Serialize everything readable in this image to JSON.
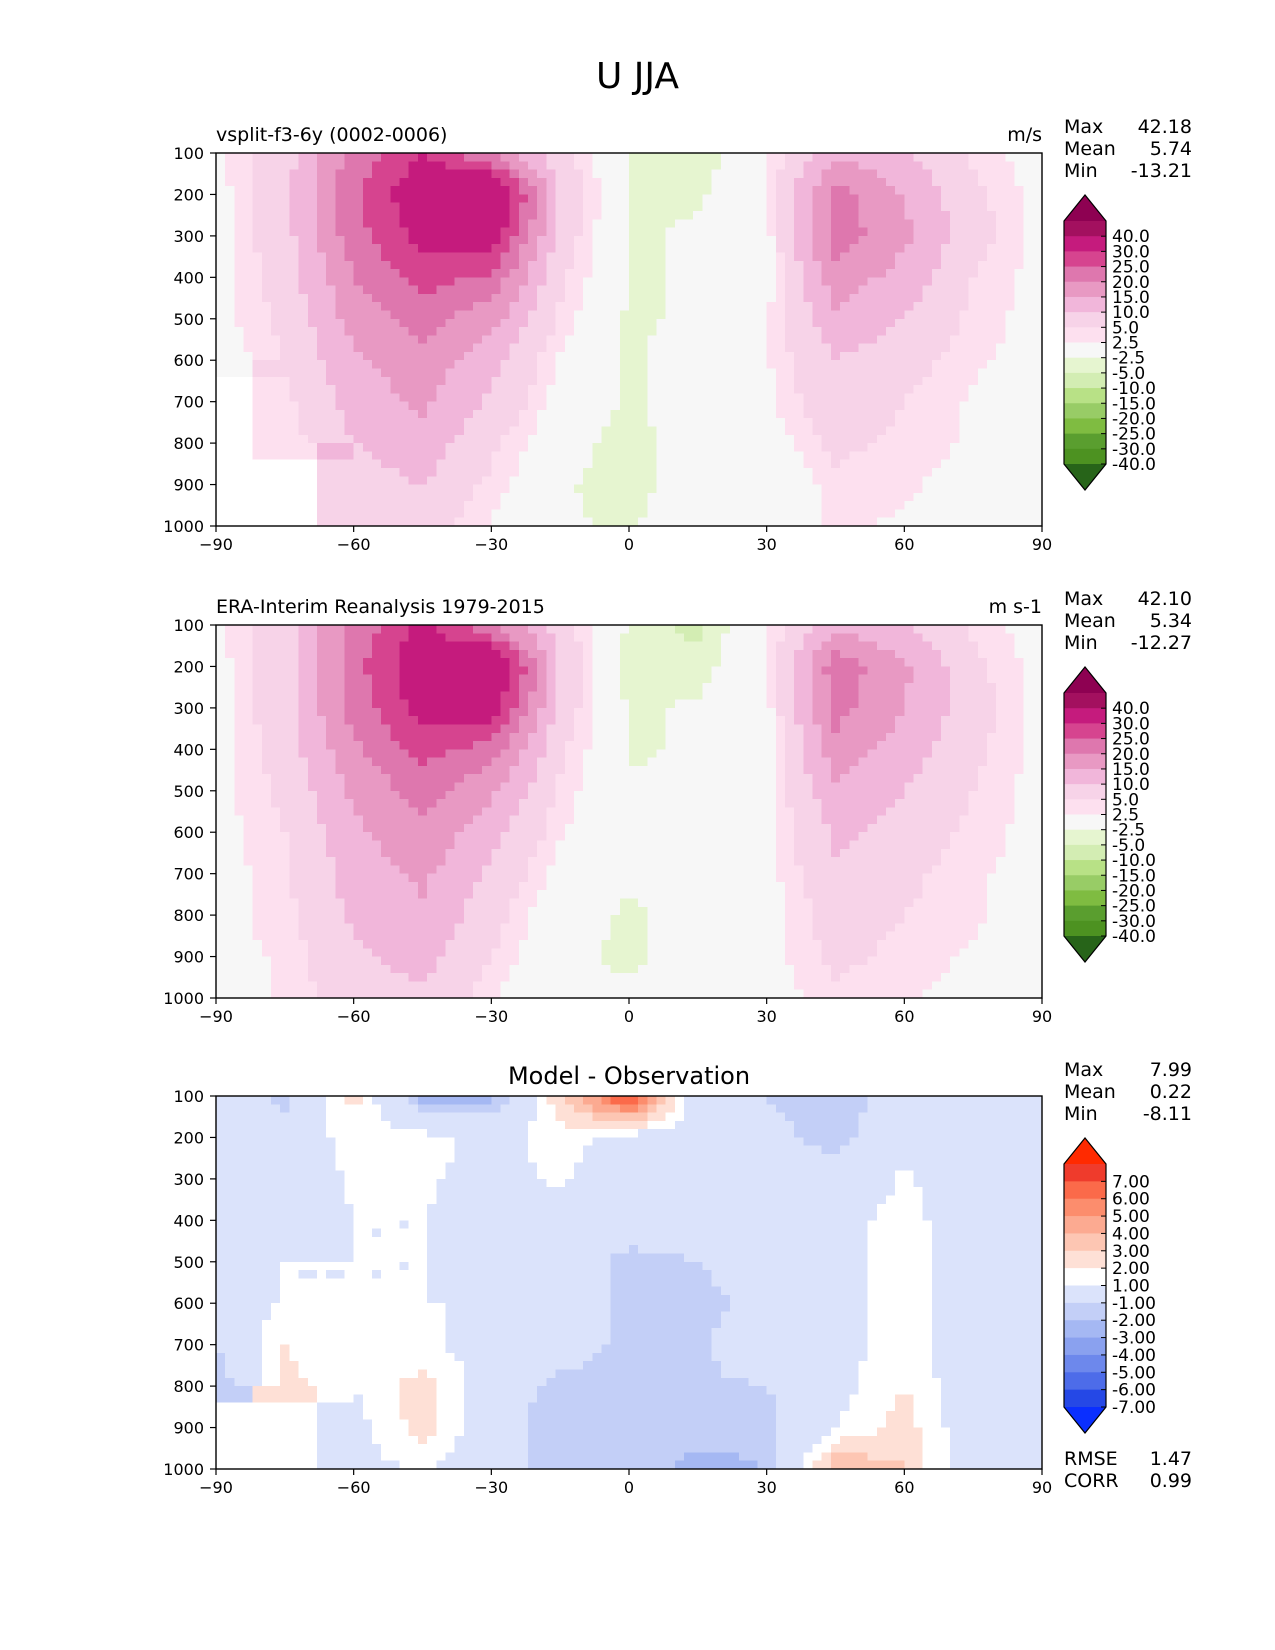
{
  "title": "U JJA",
  "x_ticks": [
    -90,
    -60,
    -30,
    0,
    30,
    60,
    90
  ],
  "y_ticks": [
    100,
    200,
    300,
    400,
    500,
    600,
    700,
    800,
    900,
    1000
  ],
  "chart_data": [
    {
      "type": "contour",
      "panel": "test",
      "title_left": "vsplit-f3-6y (0002-0006)",
      "title_right": "m/s",
      "title_center": "",
      "xlim": [
        -90,
        90
      ],
      "ylim": [
        1000,
        100
      ],
      "stats": [
        {
          "label": "Max",
          "value": "42.18"
        },
        {
          "label": "Mean",
          "value": "5.74"
        },
        {
          "label": "Min",
          "value": "-13.21"
        }
      ],
      "colorbar": {
        "levels": [
          "40.0",
          "30.0",
          "25.0",
          "20.0",
          "15.0",
          "10.0",
          "5.0",
          "2.5",
          "-2.5",
          "-5.0",
          "-10.0",
          "-15.0",
          "-20.0",
          "-25.0",
          "-30.0",
          "-40.0"
        ],
        "colors": [
          "#8e0152",
          "#a3105f",
          "#c51b7d",
          "#d6448f",
          "#de77ae",
          "#e899c3",
          "#f1b6da",
          "#f7d3e8",
          "#fde0ef",
          "#f7f7f7",
          "#e6f5d0",
          "#d3edb3",
          "#b8e186",
          "#98cc66",
          "#7fbc41",
          "#5a9e2f",
          "#4d9221",
          "#276419"
        ]
      },
      "field": {
        "lons": [
          -90,
          -75,
          -60,
          -45,
          -30,
          -15,
          0,
          15,
          30,
          45,
          60,
          75,
          90
        ],
        "levels": [
          100,
          200,
          300,
          400,
          500,
          600,
          700,
          800,
          900,
          1000
        ],
        "values": [
          [
            2,
            8,
            22,
            30,
            20,
            6,
            -3,
            -5,
            2,
            14,
            10,
            4,
            1
          ],
          [
            1,
            8,
            24,
            35,
            40,
            10,
            -3,
            -3,
            2,
            22,
            15,
            6,
            1
          ],
          [
            1,
            8,
            23,
            32,
            34,
            8,
            -3,
            -2,
            1,
            23,
            16,
            7,
            1
          ],
          [
            1,
            7,
            20,
            27,
            24,
            6,
            -3,
            -2,
            1,
            18,
            13,
            5,
            1
          ],
          [
            1,
            6,
            17,
            22,
            17,
            4,
            -3,
            -2,
            2,
            14,
            10,
            4,
            1
          ],
          [
            0,
            5,
            14,
            18,
            12,
            2,
            -3,
            -1,
            2,
            10,
            7,
            3,
            1
          ],
          [
            null,
            4,
            12,
            16,
            9,
            1,
            -3,
            -1,
            2,
            8,
            5,
            2,
            1
          ],
          [
            null,
            3,
            10,
            13,
            6,
            -1,
            -4,
            0,
            0,
            6,
            4,
            2,
            1
          ],
          [
            null,
            null,
            8,
            10,
            4,
            -2,
            -4,
            0,
            -2,
            4,
            3,
            1,
            0
          ],
          [
            null,
            null,
            5,
            7,
            2,
            -2,
            -3,
            0,
            -1,
            3,
            2,
            1,
            0
          ]
        ]
      }
    },
    {
      "type": "contour",
      "panel": "reference",
      "title_left": "ERA-Interim Reanalysis 1979-2015",
      "title_right": "m s-1",
      "title_center": "",
      "xlim": [
        -90,
        90
      ],
      "ylim": [
        1000,
        100
      ],
      "stats": [
        {
          "label": "Max",
          "value": "42.10"
        },
        {
          "label": "Mean",
          "value": "5.34"
        },
        {
          "label": "Min",
          "value": "-12.27"
        }
      ],
      "colorbar": {
        "levels": [
          "40.0",
          "30.0",
          "25.0",
          "20.0",
          "15.0",
          "10.0",
          "5.0",
          "2.5",
          "-2.5",
          "-5.0",
          "-10.0",
          "-15.0",
          "-20.0",
          "-25.0",
          "-30.0",
          "-40.0"
        ],
        "colors": [
          "#8e0152",
          "#a3105f",
          "#c51b7d",
          "#d6448f",
          "#de77ae",
          "#e899c3",
          "#f1b6da",
          "#f7d3e8",
          "#fde0ef",
          "#f7f7f7",
          "#e6f5d0",
          "#d3edb3",
          "#b8e186",
          "#98cc66",
          "#7fbc41",
          "#5a9e2f",
          "#4d9221",
          "#276419"
        ]
      },
      "field": {
        "lons": [
          -90,
          -75,
          -60,
          -45,
          -30,
          -15,
          0,
          15,
          30,
          45,
          60,
          75,
          90
        ],
        "levels": [
          100,
          200,
          300,
          400,
          500,
          600,
          700,
          800,
          900,
          1000
        ],
        "values": [
          [
            2,
            8,
            21,
            31,
            20,
            7,
            -3,
            -6,
            2,
            14,
            10,
            4,
            1
          ],
          [
            1,
            8,
            23,
            35,
            40,
            10,
            -4,
            -4,
            2,
            23,
            16,
            6,
            1
          ],
          [
            1,
            8,
            22,
            32,
            33,
            8,
            -3,
            -2,
            1,
            22,
            15,
            7,
            1
          ],
          [
            1,
            7,
            19,
            27,
            23,
            6,
            -3,
            -2,
            1,
            18,
            13,
            6,
            1
          ],
          [
            1,
            6,
            16,
            22,
            16,
            4,
            -2,
            -2,
            1,
            14,
            10,
            5,
            1
          ],
          [
            1,
            5,
            14,
            19,
            12,
            3,
            -2,
            -1,
            1,
            11,
            8,
            4,
            1
          ],
          [
            1,
            4,
            12,
            16,
            9,
            1,
            -2,
            -1,
            1,
            9,
            6,
            3,
            1
          ],
          [
            1,
            4,
            11,
            14,
            7,
            -1,
            -3,
            -1,
            1,
            7,
            5,
            3,
            1
          ],
          [
            1,
            3,
            9,
            12,
            5,
            -2,
            -3,
            -1,
            1,
            6,
            4,
            2,
            1
          ],
          [
            1,
            3,
            7,
            9,
            3,
            -2,
            -2,
            -1,
            1,
            4,
            3,
            1,
            1
          ]
        ]
      }
    },
    {
      "type": "contour",
      "panel": "difference",
      "title_left": "",
      "title_right": "",
      "title_center": "Model - Observation",
      "xlim": [
        -90,
        90
      ],
      "ylim": [
        1000,
        100
      ],
      "stats": [
        {
          "label": "Max",
          "value": "7.99"
        },
        {
          "label": "Mean",
          "value": "0.22"
        },
        {
          "label": "Min",
          "value": "-8.11"
        }
      ],
      "extra_stats": [
        {
          "label": "RMSE",
          "value": "1.47"
        },
        {
          "label": "CORR",
          "value": "0.99"
        }
      ],
      "colorbar": {
        "levels": [
          "7.00",
          "6.00",
          "5.00",
          "4.00",
          "3.00",
          "2.00",
          "1.00",
          "-1.00",
          "-2.00",
          "-3.00",
          "-4.00",
          "-5.00",
          "-6.00",
          "-7.00"
        ],
        "colors": [
          "#ff2a00",
          "#ef3b2c",
          "#fb6a4a",
          "#fc8d6d",
          "#fcaa91",
          "#fdc6b3",
          "#fee0d6",
          "#ffffff",
          "#dbe3fb",
          "#c3cff7",
          "#a5b8f3",
          "#8aa1ef",
          "#6d88ec",
          "#4d6ce9",
          "#2548e6",
          "#0a2fff"
        ]
      },
      "field": {
        "lons": [
          -90,
          -75,
          -60,
          -45,
          -30,
          -15,
          0,
          15,
          30,
          45,
          60,
          75,
          90
        ],
        "levels": [
          100,
          200,
          300,
          400,
          500,
          600,
          700,
          800,
          900,
          1000
        ],
        "values": [
          [
            0,
            -1.5,
            2.5,
            -2.5,
            -2.5,
            3,
            7.5,
            0,
            -1,
            -2,
            0,
            0,
            0
          ],
          [
            0,
            0,
            1.5,
            1.5,
            0.5,
            1.5,
            0.5,
            0,
            -0.5,
            -1.5,
            0.5,
            0,
            0
          ],
          [
            0,
            0,
            1.2,
            1.2,
            0.5,
            1.2,
            0,
            0,
            -0.3,
            -0.5,
            1.2,
            0,
            0
          ],
          [
            1,
            0,
            1,
            1,
            0.5,
            0.3,
            0,
            0,
            0,
            0.5,
            1.5,
            0,
            0
          ],
          [
            1,
            1,
            1,
            1,
            0.5,
            0.2,
            -1.5,
            -1,
            0,
            0.5,
            1.5,
            0,
            0
          ],
          [
            0.5,
            1,
            1,
            1,
            1,
            0,
            -1.5,
            -1.5,
            -0.5,
            0.5,
            1.5,
            0,
            0
          ],
          [
            -1,
            2,
            1,
            1.2,
            0.5,
            0,
            -1.5,
            -1.2,
            0,
            0.5,
            1.5,
            0,
            0
          ],
          [
            -2,
            2.5,
            1,
            2.5,
            0.2,
            -1.5,
            -1.5,
            -1.2,
            -1,
            0.5,
            2,
            0,
            0
          ],
          [
            null,
            null,
            0.5,
            2.5,
            0,
            -2,
            -1.5,
            -1.5,
            -1.5,
            1,
            2.5,
            0,
            0
          ],
          [
            null,
            null,
            0.5,
            1.2,
            0,
            -2,
            -1,
            -2.5,
            -2,
            4,
            3,
            0,
            0
          ]
        ]
      }
    }
  ]
}
